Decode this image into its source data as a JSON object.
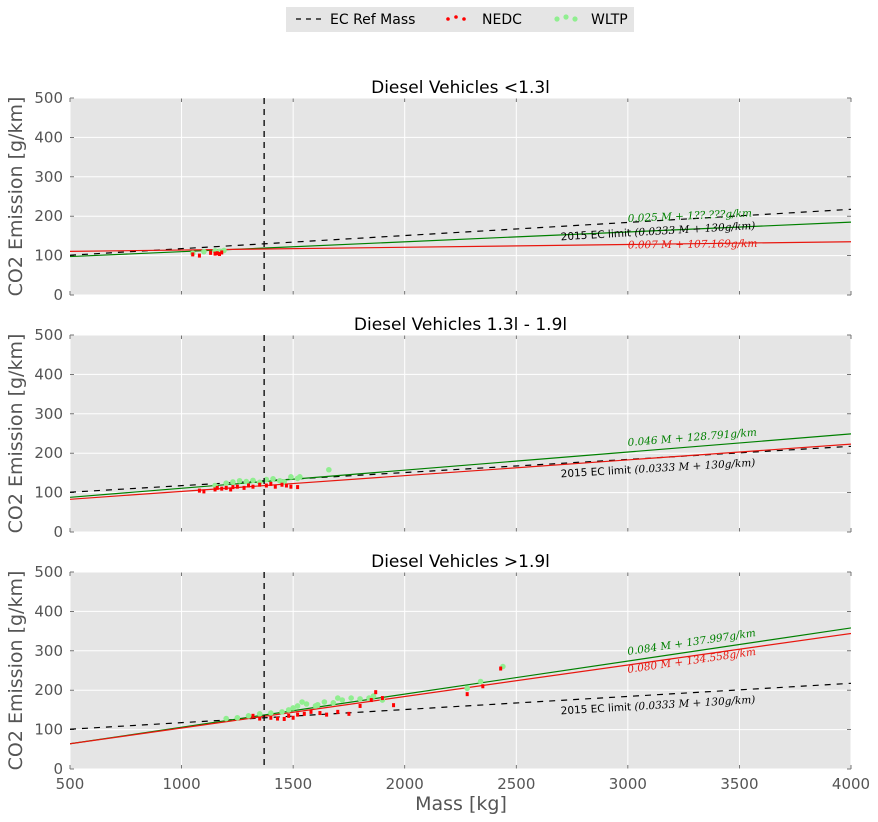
{
  "legend": {
    "items": [
      {
        "label": "EC Ref Mass",
        "style": "dashed",
        "color": "#000000"
      },
      {
        "label": "NEDC",
        "style": "points",
        "color": "#ff0000"
      },
      {
        "label": "WLTP",
        "style": "points",
        "color": "#90ee90"
      }
    ]
  },
  "colors": {
    "nedc": "#ff0000",
    "nedc_line": "#e8170f",
    "wltp": "#90ee90",
    "wltp_line": "#008000",
    "ref": "#000000",
    "panel_bg": "#e5e5e5",
    "grid": "#ffffff"
  },
  "chart_data": [
    {
      "type": "scatter",
      "title": "Diesel Vehicles <1.3l",
      "ylabel": "CO2 Emission [g/km]",
      "xlabel": "",
      "xlim": [
        500,
        4000
      ],
      "ylim": [
        0,
        500
      ],
      "xticks": [
        "500",
        "1000",
        "1500",
        "2000",
        "2500",
        "3000",
        "3500",
        "4000"
      ],
      "yticks": [
        "0",
        "100",
        "200",
        "300",
        "400",
        "500"
      ],
      "ref_mass": 1370,
      "ec_limit": {
        "label_prefix": "2015 EC limit",
        "label_formula": "(0.0333 M + 130g/km)",
        "slope": 0.0333,
        "intercept": 130,
        "ref_mass": 1372
      },
      "nedc_fit": {
        "label": "0.007 M + 107.169g/km",
        "slope": 0.007,
        "intercept": 107.169
      },
      "wltp_fit": {
        "label": "0.025 M + 1??.???g/km",
        "slope": 0.025,
        "intercept": 85
      },
      "nedc_points": [
        [
          1050,
          103
        ],
        [
          1080,
          100
        ],
        [
          1130,
          107
        ],
        [
          1150,
          105
        ],
        [
          1160,
          106
        ],
        [
          1180,
          108
        ],
        [
          1170,
          104
        ]
      ],
      "wltp_points": [
        [
          1050,
          106
        ],
        [
          1100,
          110
        ],
        [
          1150,
          112
        ],
        [
          1170,
          111
        ],
        [
          1190,
          113
        ]
      ]
    },
    {
      "type": "scatter",
      "title": "Diesel Vehicles 1.3l - 1.9l",
      "ylabel": "CO2 Emission [g/km]",
      "xlabel": "",
      "xlim": [
        500,
        4000
      ],
      "ylim": [
        0,
        500
      ],
      "xticks": [
        "500",
        "1000",
        "1500",
        "2000",
        "2500",
        "3000",
        "3500",
        "4000"
      ],
      "yticks": [
        "0",
        "100",
        "200",
        "300",
        "400",
        "500"
      ],
      "ref_mass": 1370,
      "ec_limit": {
        "label_prefix": "2015 EC limit",
        "label_formula": "(0.0333 M + 130g/km)",
        "slope": 0.0333,
        "intercept": 130,
        "ref_mass": 1372
      },
      "nedc_fit": {
        "label": "",
        "slope": 0.04,
        "intercept": 63
      },
      "wltp_fit": {
        "label": "0.046 M + 128.791g/km",
        "slope": 0.046,
        "intercept": 65
      },
      "nedc_points": [
        [
          1080,
          105
        ],
        [
          1100,
          103
        ],
        [
          1150,
          108
        ],
        [
          1180,
          110
        ],
        [
          1200,
          112
        ],
        [
          1220,
          108
        ],
        [
          1250,
          115
        ],
        [
          1280,
          112
        ],
        [
          1300,
          118
        ],
        [
          1320,
          115
        ],
        [
          1350,
          120
        ],
        [
          1380,
          118
        ],
        [
          1400,
          122
        ],
        [
          1420,
          115
        ],
        [
          1450,
          120
        ],
        [
          1470,
          118
        ],
        [
          1490,
          115
        ],
        [
          1520,
          114
        ],
        [
          1160,
          112
        ],
        [
          1230,
          114
        ]
      ],
      "wltp_points": [
        [
          1150,
          118
        ],
        [
          1200,
          124
        ],
        [
          1230,
          127
        ],
        [
          1260,
          130
        ],
        [
          1290,
          128
        ],
        [
          1320,
          131
        ],
        [
          1350,
          126
        ],
        [
          1380,
          133
        ],
        [
          1410,
          135
        ],
        [
          1440,
          130
        ],
        [
          1460,
          127
        ],
        [
          1490,
          140
        ],
        [
          1520,
          136
        ],
        [
          1530,
          140
        ],
        [
          1660,
          158
        ]
      ]
    },
    {
      "type": "scatter",
      "title": "Diesel Vehicles >1.9l",
      "ylabel": "CO2 Emission [g/km]",
      "xlabel": "Mass [kg]",
      "xlim": [
        500,
        4000
      ],
      "ylim": [
        0,
        500
      ],
      "xticks": [
        "500",
        "1000",
        "1500",
        "2000",
        "2500",
        "3000",
        "3500",
        "4000"
      ],
      "yticks": [
        "0",
        "100",
        "200",
        "300",
        "400",
        "500"
      ],
      "ref_mass": 1370,
      "ec_limit": {
        "label_prefix": "2015 EC limit",
        "label_formula": "(0.0333 M + 130g/km)",
        "slope": 0.0333,
        "intercept": 130,
        "ref_mass": 1372
      },
      "nedc_fit": {
        "label": "0.080 M + 134.558g/km",
        "slope": 0.08,
        "intercept": 24
      },
      "wltp_fit": {
        "label": "0.084 M + 137.997g/km",
        "slope": 0.084,
        "intercept": 22
      },
      "nedc_points": [
        [
          1320,
          135
        ],
        [
          1350,
          128
        ],
        [
          1400,
          130
        ],
        [
          1430,
          128
        ],
        [
          1460,
          127
        ],
        [
          1480,
          135
        ],
        [
          1500,
          130
        ],
        [
          1520,
          138
        ],
        [
          1550,
          140
        ],
        [
          1580,
          145
        ],
        [
          1620,
          142
        ],
        [
          1650,
          138
        ],
        [
          1700,
          145
        ],
        [
          1750,
          140
        ],
        [
          1800,
          160
        ],
        [
          1850,
          175
        ],
        [
          1870,
          195
        ],
        [
          1900,
          180
        ],
        [
          1950,
          162
        ],
        [
          2280,
          190
        ],
        [
          2350,
          210
        ],
        [
          2430,
          255
        ]
      ],
      "wltp_points": [
        [
          1200,
          128
        ],
        [
          1250,
          130
        ],
        [
          1300,
          135
        ],
        [
          1350,
          140
        ],
        [
          1400,
          142
        ],
        [
          1450,
          145
        ],
        [
          1480,
          150
        ],
        [
          1500,
          155
        ],
        [
          1520,
          160
        ],
        [
          1560,
          165
        ],
        [
          1600,
          160
        ],
        [
          1640,
          170
        ],
        [
          1680,
          168
        ],
        [
          1720,
          175
        ],
        [
          1760,
          180
        ],
        [
          1800,
          178
        ],
        [
          1840,
          180
        ],
        [
          1860,
          185
        ],
        [
          1900,
          175
        ],
        [
          2280,
          205
        ],
        [
          2340,
          222
        ],
        [
          2440,
          260
        ],
        [
          1540,
          170
        ],
        [
          1610,
          163
        ],
        [
          1700,
          180
        ]
      ]
    }
  ]
}
